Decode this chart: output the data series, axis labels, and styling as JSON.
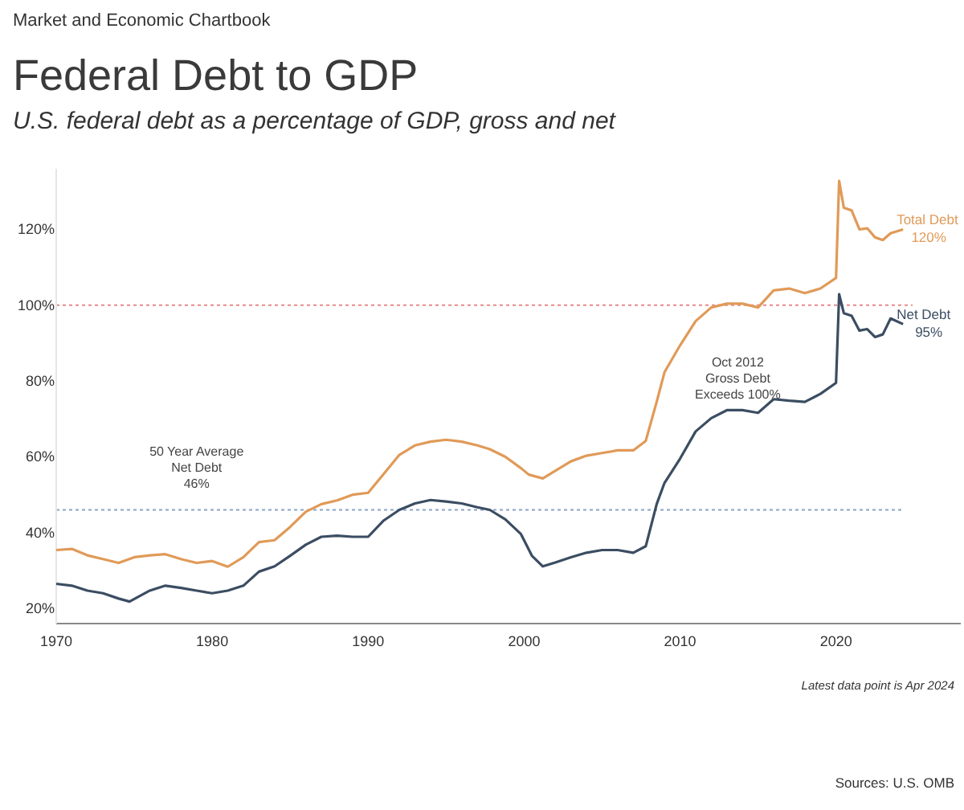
{
  "chart_data": {
    "type": "line",
    "title": "Federal Debt to GDP",
    "subtitle": "U.S. federal debt as a percentage of GDP, gross and net",
    "annotations": [
      "Market and Economic Chartbook",
      "Oct 2012\nGross Debt\nExceeds 100%",
      "Latest data point is Apr 2024",
      "Sources: U.S. OMB"
    ],
    "series": [
      {
        "name": "Total Debt",
        "color": "#e09a58",
        "x": [
          1970,
          1971,
          1972,
          1973,
          1974,
          1975,
          1976,
          1977,
          1978,
          1979,
          1980,
          1981,
          1982,
          1983,
          1984,
          1985,
          1986,
          1987,
          1988,
          1989,
          1990,
          1991,
          1992,
          1993,
          1994,
          1995,
          1996,
          1997,
          1997.8,
          1998.8,
          1999.8,
          2000.3,
          2001.2,
          2002,
          2003,
          2004,
          2005,
          2006,
          2007,
          2007.8,
          2008.5,
          2009,
          2010,
          2011,
          2012,
          2013,
          2014,
          2015,
          2016,
          2017,
          2018,
          2019,
          2020,
          2020.2,
          2020.5,
          2021,
          2021.5,
          2022,
          2022.5,
          2023,
          2023.5,
          2024.3
        ],
        "values": [
          35.4,
          35.7,
          34,
          33,
          32,
          33.5,
          34,
          34.3,
          33,
          32,
          32.5,
          31,
          33.5,
          37.5,
          38,
          41.5,
          45.5,
          47.5,
          48.5,
          50,
          50.5,
          55.5,
          60.5,
          63,
          64,
          64.5,
          64,
          63,
          62,
          60,
          57,
          55.3,
          54.3,
          56.3,
          58.8,
          60.3,
          61,
          61.7,
          61.7,
          64.2,
          74.5,
          82.3,
          89.4,
          95.8,
          99.4,
          100.4,
          100.4,
          99.4,
          103.9,
          104.4,
          103.2,
          104.4,
          107.2,
          132.8,
          125.7,
          125,
          120,
          120.3,
          117.9,
          117.2,
          119,
          120
        ],
        "value_labels": [
          null,
          null,
          null,
          null,
          null,
          null,
          null,
          null,
          null,
          null,
          null,
          null,
          null,
          null,
          null,
          null,
          null,
          null,
          null,
          null,
          null,
          null,
          null,
          null,
          null,
          null,
          null,
          null,
          null,
          null,
          null,
          null,
          null,
          null,
          null,
          null,
          null,
          null,
          null,
          null,
          null,
          null,
          null,
          null,
          null,
          null,
          null,
          null,
          null,
          null,
          null,
          null,
          null,
          null,
          null,
          null,
          null,
          null,
          null,
          null,
          null,
          "120%"
        ]
      },
      {
        "name": "Net Debt",
        "color": "#3b4d62",
        "x": [
          1970,
          1971,
          1972,
          1973,
          1974,
          1974.7,
          1976,
          1977,
          1978,
          1979,
          1980,
          1981,
          1982,
          1983,
          1984,
          1985,
          1986,
          1987,
          1988,
          1989,
          1990,
          1991,
          1992,
          1993,
          1994,
          1995,
          1996,
          1997,
          1997.8,
          1998.8,
          1999.8,
          2000.5,
          2001.2,
          2002,
          2003,
          2004,
          2005,
          2006,
          2007,
          2007.8,
          2008.5,
          2009,
          2010,
          2011,
          2012,
          2013,
          2014,
          2015,
          2016,
          2017,
          2018,
          2019,
          2020,
          2020.2,
          2020.5,
          2021,
          2021.5,
          2022,
          2022.5,
          2023,
          2023.5,
          2024.3
        ],
        "values": [
          26.5,
          26,
          24.7,
          24,
          22.6,
          21.8,
          24.7,
          26,
          25.4,
          24.7,
          24,
          24.7,
          26,
          29.7,
          31.1,
          33.9,
          36.8,
          38.9,
          39.2,
          38.9,
          38.9,
          43.2,
          46,
          47.7,
          48.6,
          48.2,
          47.7,
          46.7,
          46,
          43.5,
          39.6,
          33.9,
          31.1,
          32.1,
          33.5,
          34.7,
          35.4,
          35.4,
          34.7,
          36.4,
          47.5,
          53.1,
          59.5,
          66.7,
          70.2,
          72.3,
          72.3,
          71.6,
          75.2,
          74.8,
          74.5,
          76.6,
          79.5,
          102.9,
          97.9,
          97.2,
          93.3,
          93.7,
          91.6,
          92.3,
          96.5,
          95
        ],
        "value_labels": [
          null,
          null,
          null,
          null,
          null,
          null,
          null,
          null,
          null,
          null,
          null,
          null,
          null,
          null,
          null,
          null,
          null,
          null,
          null,
          null,
          null,
          null,
          null,
          null,
          null,
          null,
          null,
          null,
          null,
          null,
          null,
          null,
          null,
          null,
          null,
          null,
          null,
          null,
          null,
          null,
          null,
          null,
          null,
          null,
          null,
          null,
          null,
          null,
          null,
          null,
          null,
          null,
          null,
          null,
          null,
          null,
          null,
          null,
          null,
          null,
          null,
          "95%"
        ]
      }
    ],
    "xlim": [
      1970,
      2028
    ],
    "xticks": [
      1970,
      1980,
      1990,
      2000,
      2010,
      2020
    ],
    "ylim": [
      16,
      136
    ],
    "yticks": [
      {
        "value": 20,
        "label": "20%"
      },
      {
        "value": 40,
        "label": "40%"
      },
      {
        "value": 60,
        "label": "60%"
      },
      {
        "value": 80,
        "label": "80%"
      },
      {
        "value": 100,
        "label": "100%"
      },
      {
        "value": 120,
        "label": "120%"
      }
    ],
    "ref_lines": [
      {
        "axis": "y",
        "value": 100,
        "color": "#e88a8a",
        "line_style": "dotted"
      },
      {
        "axis": "y",
        "value": 46,
        "label": "50 Year Average\nNet Debt\n46%",
        "color": "#8aa4c8",
        "line_style": "dotted"
      }
    ],
    "grid": false,
    "legend": false,
    "marker": "none",
    "line_style": "solid"
  }
}
